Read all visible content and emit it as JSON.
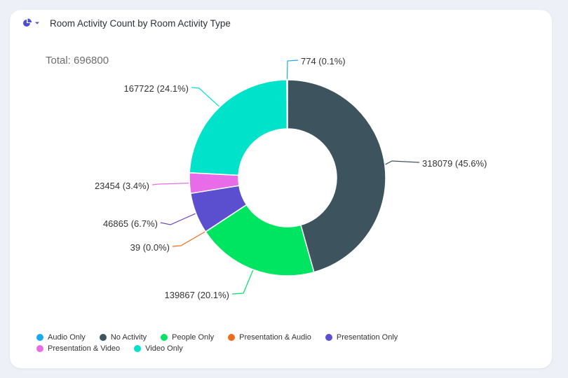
{
  "header": {
    "title": "Room Activity Count by Room Activity Type",
    "chart_type_icon": "pie-chart-icon",
    "dropdown_icon": "caret-down-icon",
    "icon_color": "#4b4fd8"
  },
  "total_label": "Total: 696800",
  "chart_data": {
    "type": "pie",
    "donut": true,
    "title": "Room Activity Count by Room Activity Type",
    "total": 696800,
    "slices": [
      {
        "name": "No Activity",
        "value": 318079,
        "label": "318079 (45.6%)",
        "color": "#3d545f"
      },
      {
        "name": "People Only",
        "value": 139867,
        "label": "139867 (20.1%)",
        "color": "#00e561"
      },
      {
        "name": "Presentation & Audio",
        "value": 39,
        "label": "39 (0.0%)",
        "color": "#f26b1d"
      },
      {
        "name": "Presentation Only",
        "value": 46865,
        "label": "46865 (6.7%)",
        "color": "#5b4fcf"
      },
      {
        "name": "Presentation & Video",
        "value": 23454,
        "label": "23454 (3.4%)",
        "color": "#e86ce8"
      },
      {
        "name": "Video Only",
        "value": 167722,
        "label": "167722 (24.1%)",
        "color": "#00e2c9"
      },
      {
        "name": "Audio Only",
        "value": 774,
        "label": "774 (0.1%)",
        "color": "#1aa9ef"
      }
    ],
    "legend_position": "bottom-left",
    "legend": [
      [
        {
          "name": "Audio Only",
          "color": "#1aa9ef"
        },
        {
          "name": "No Activity",
          "color": "#3d545f"
        },
        {
          "name": "People Only",
          "color": "#00e561"
        },
        {
          "name": "Presentation & Audio",
          "color": "#f26b1d"
        },
        {
          "name": "Presentation Only",
          "color": "#5b4fcf"
        }
      ],
      [
        {
          "name": "Presentation & Video",
          "color": "#e86ce8"
        },
        {
          "name": "Video Only",
          "color": "#00e2c9"
        }
      ]
    ]
  }
}
